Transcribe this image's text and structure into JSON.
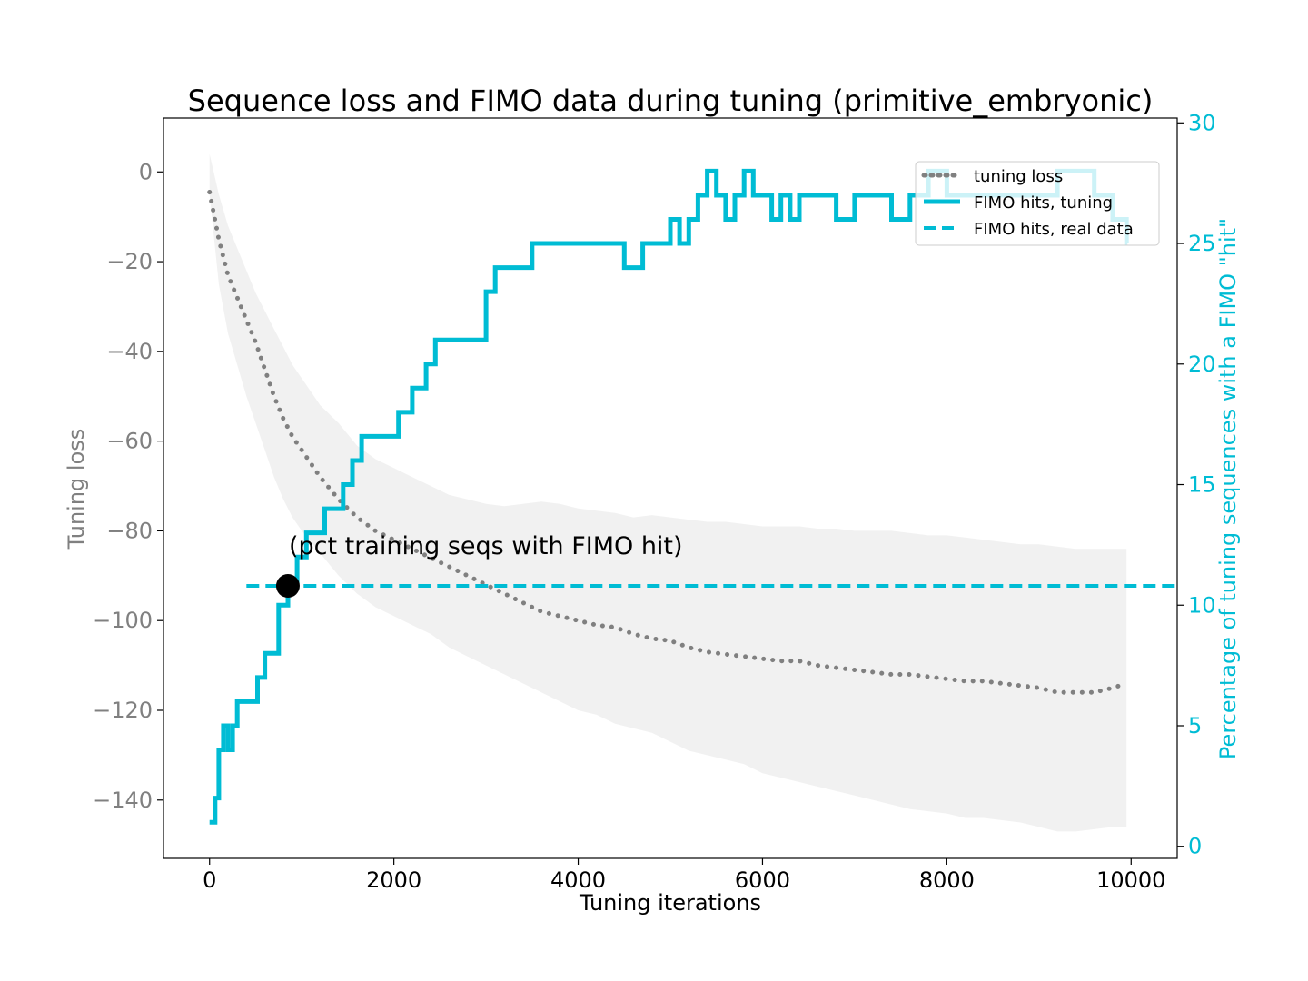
{
  "chart_data": {
    "type": "line",
    "title": "Sequence loss and FIMO data during tuning (primitive_embryonic)",
    "xlabel": "Tuning iterations",
    "ylabel_left": "Tuning loss",
    "ylabel_right": "Percentage of tuning sequences with a FIMO \"hit\"",
    "xlim": [
      -500,
      10500
    ],
    "ylim_left": [
      -153,
      12
    ],
    "ylim_right": [
      -0.5,
      30.2
    ],
    "x_ticks": [
      0,
      2000,
      4000,
      6000,
      8000,
      10000
    ],
    "x_tick_labels": [
      "0",
      "2000",
      "4000",
      "6000",
      "8000",
      "10000"
    ],
    "y_left_ticks": [
      0,
      -20,
      -40,
      -60,
      -80,
      -100,
      -120,
      -140
    ],
    "y_left_tick_labels": [
      "0",
      "−20",
      "−40",
      "−60",
      "−80",
      "−100",
      "−120",
      "−140"
    ],
    "y_right_ticks": [
      0,
      5,
      10,
      15,
      20,
      25,
      30
    ],
    "y_right_tick_labels": [
      "0",
      "5",
      "10",
      "15",
      "20",
      "25",
      "30"
    ],
    "grid": false,
    "legend_position": "top-right",
    "colors": {
      "loss": "#808080",
      "band": "#ececec",
      "fimo": "#00bcd4",
      "marker": "#000000"
    },
    "annotation": {
      "text": "(pct training seqs with FIMO hit)",
      "x": 850,
      "y_right": 10.8
    },
    "series": [
      {
        "name": "tuning loss",
        "axis": "left",
        "style": "dotted",
        "x": [
          0,
          100,
          200,
          300,
          400,
          500,
          600,
          700,
          800,
          900,
          1000,
          1200,
          1400,
          1600,
          1800,
          2000,
          2200,
          2400,
          2600,
          2800,
          3000,
          3200,
          3400,
          3600,
          3800,
          4000,
          4200,
          4400,
          4600,
          4800,
          5000,
          5200,
          5400,
          5600,
          5800,
          6000,
          6200,
          6400,
          6600,
          6800,
          7000,
          7200,
          7400,
          7600,
          7800,
          8000,
          8200,
          8400,
          8600,
          8800,
          9000,
          9200,
          9400,
          9600,
          9800,
          9950
        ],
        "values": [
          -4.5,
          -15,
          -23,
          -28,
          -33,
          -38,
          -44,
          -50,
          -55,
          -59,
          -62,
          -68,
          -73,
          -77,
          -80,
          -82,
          -84,
          -86,
          -88,
          -90,
          -92,
          -94,
          -96,
          -98,
          -99,
          -100,
          -101,
          -101.5,
          -103,
          -104,
          -104.5,
          -106,
          -107,
          -107.5,
          -108,
          -108.5,
          -109,
          -109,
          -110,
          -110.5,
          -111,
          -111.5,
          -112,
          -112,
          -112.5,
          -113,
          -113.5,
          -113.5,
          -114,
          -114.5,
          -115,
          -116,
          -116,
          -116,
          -115,
          -114
        ]
      },
      {
        "name": "loss band",
        "axis": "left",
        "style": "band",
        "x": [
          0,
          100,
          200,
          300,
          400,
          500,
          600,
          700,
          800,
          900,
          1000,
          1200,
          1400,
          1600,
          1800,
          2000,
          2200,
          2400,
          2600,
          2800,
          3000,
          3200,
          3400,
          3600,
          3800,
          4000,
          4200,
          4400,
          4600,
          4800,
          5000,
          5200,
          5400,
          5600,
          5800,
          6000,
          6200,
          6400,
          6600,
          6800,
          7000,
          7200,
          7400,
          7600,
          7800,
          8000,
          8200,
          8400,
          8600,
          8800,
          9000,
          9200,
          9400,
          9600,
          9800,
          9950
        ],
        "upper": [
          4,
          -5,
          -12,
          -17,
          -22,
          -27,
          -31,
          -35,
          -39,
          -43,
          -46,
          -52,
          -56,
          -61,
          -64,
          -66,
          -68,
          -70,
          -72,
          -73,
          -74,
          -74.5,
          -74,
          -73.5,
          -74,
          -75,
          -75.5,
          -76,
          -77,
          -76.5,
          -77,
          -77.5,
          -78,
          -78,
          -78.5,
          -79,
          -79,
          -79,
          -79.5,
          -79.5,
          -80,
          -80,
          -80,
          -80.5,
          -81,
          -81,
          -81.5,
          -82,
          -82.5,
          -83,
          -83,
          -83.5,
          -84,
          -84,
          -84,
          -84
        ],
        "lower": [
          -5,
          -25,
          -36,
          -43,
          -50,
          -56,
          -62,
          -68,
          -73,
          -77,
          -80,
          -85,
          -90,
          -94,
          -97,
          -99,
          -101,
          -103,
          -106,
          -108,
          -110,
          -112,
          -114,
          -116,
          -118,
          -120,
          -121,
          -123,
          -124,
          -125,
          -127,
          -129,
          -130,
          -131,
          -132,
          -134,
          -135,
          -136,
          -137,
          -138,
          -139,
          -140,
          -141,
          -142,
          -142.5,
          -143,
          -144,
          -144,
          -144.5,
          -145,
          -146,
          -147,
          -147,
          -146.5,
          -146,
          -146
        ]
      },
      {
        "name": "FIMO hits, tuning",
        "axis": "right",
        "style": "step",
        "x": [
          0,
          60,
          100,
          150,
          200,
          250,
          300,
          380,
          450,
          520,
          600,
          680,
          750,
          850,
          950,
          1050,
          1150,
          1250,
          1350,
          1450,
          1550,
          1650,
          1800,
          1950,
          2050,
          2200,
          2350,
          2450,
          2600,
          2800,
          3000,
          3100,
          3300,
          3500,
          3700,
          3900,
          4100,
          4300,
          4500,
          4700,
          4900,
          5000,
          5100,
          5200,
          5300,
          5400,
          5500,
          5600,
          5700,
          5800,
          5900,
          6000,
          6100,
          6200,
          6300,
          6400,
          6600,
          6800,
          7000,
          7200,
          7400,
          7600,
          7800,
          8000,
          8200,
          8400,
          8600,
          8800,
          9000,
          9200,
          9400,
          9600,
          9800,
          9950
        ],
        "values": [
          1,
          2,
          4,
          5,
          4,
          5,
          6,
          6,
          6,
          7,
          8,
          8,
          10,
          11,
          12,
          13,
          13,
          14,
          14,
          15,
          16,
          17,
          17,
          17,
          18,
          19,
          20,
          21,
          21,
          21,
          23,
          24,
          24,
          25,
          25,
          25,
          25,
          25,
          24,
          25,
          25,
          26,
          25,
          26,
          27,
          28,
          27,
          26,
          27,
          28,
          27,
          27,
          26,
          27,
          26,
          27,
          27,
          26,
          27,
          27,
          26,
          27,
          28,
          27,
          27,
          27,
          27,
          27,
          27,
          28,
          28,
          27,
          26,
          25
        ]
      },
      {
        "name": "FIMO hits, real data",
        "axis": "right",
        "style": "dashed",
        "x": [
          400,
          10500
        ],
        "values": [
          10.8,
          10.8
        ]
      }
    ]
  }
}
